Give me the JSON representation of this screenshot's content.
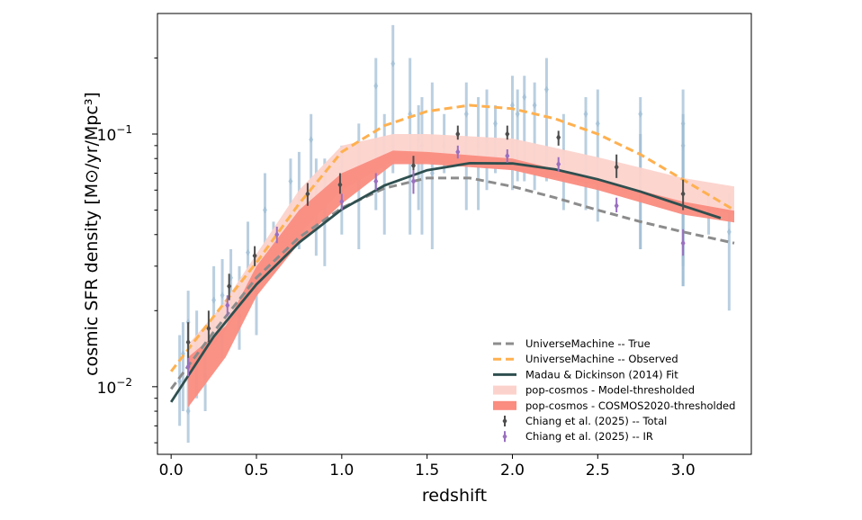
{
  "chart_data": {
    "type": "line",
    "title": "",
    "xlabel": "redshift",
    "ylabel": "cosmic SFR density [M⊙/yr/Mpc³]",
    "xlim": [
      -0.08,
      3.4
    ],
    "ylim": [
      0.0054,
      0.3
    ],
    "yscale": "log",
    "grid": false,
    "legend_position": "lower-right",
    "xticks": [
      0.0,
      0.5,
      1.0,
      1.5,
      2.0,
      2.5,
      3.0
    ],
    "xtick_labels": [
      "0.0",
      "0.5",
      "1.0",
      "1.5",
      "2.0",
      "2.5",
      "3.0"
    ],
    "yticks": [
      0.01,
      0.1
    ],
    "ytick_labels": [
      [
        "10",
        "−2"
      ],
      [
        "10",
        "−1"
      ]
    ],
    "compilation_points": {
      "color": "#9dbcd4",
      "points": [
        [
          0.05,
          0.0105,
          0.007,
          0.016
        ],
        [
          0.07,
          0.0135,
          0.008,
          0.018
        ],
        [
          0.1,
          0.008,
          0.006,
          0.011
        ],
        [
          0.1,
          0.018,
          0.012,
          0.024
        ],
        [
          0.15,
          0.014,
          0.009,
          0.02
        ],
        [
          0.2,
          0.011,
          0.008,
          0.017
        ],
        [
          0.25,
          0.022,
          0.015,
          0.03
        ],
        [
          0.3,
          0.023,
          0.013,
          0.032
        ],
        [
          0.35,
          0.027,
          0.018,
          0.035
        ],
        [
          0.4,
          0.019,
          0.014,
          0.03
        ],
        [
          0.45,
          0.034,
          0.022,
          0.045
        ],
        [
          0.5,
          0.024,
          0.016,
          0.033
        ],
        [
          0.55,
          0.05,
          0.035,
          0.07
        ],
        [
          0.6,
          0.035,
          0.028,
          0.045
        ],
        [
          0.7,
          0.065,
          0.04,
          0.08
        ],
        [
          0.75,
          0.055,
          0.035,
          0.085
        ],
        [
          0.82,
          0.095,
          0.05,
          0.12
        ],
        [
          0.85,
          0.062,
          0.033,
          0.08
        ],
        [
          0.9,
          0.06,
          0.03,
          0.08
        ],
        [
          1.0,
          0.06,
          0.04,
          0.09
        ],
        [
          1.1,
          0.07,
          0.035,
          0.11
        ],
        [
          1.2,
          0.155,
          0.05,
          0.2
        ],
        [
          1.25,
          0.08,
          0.04,
          0.12
        ],
        [
          1.3,
          0.19,
          0.07,
          0.27
        ],
        [
          1.4,
          0.12,
          0.04,
          0.2
        ],
        [
          1.45,
          0.095,
          0.05,
          0.13
        ],
        [
          1.47,
          0.09,
          0.04,
          0.14
        ],
        [
          1.53,
          0.07,
          0.035,
          0.16
        ],
        [
          1.6,
          0.09,
          0.07,
          0.12
        ],
        [
          1.73,
          0.12,
          0.05,
          0.16
        ],
        [
          1.8,
          0.09,
          0.05,
          0.14
        ],
        [
          1.85,
          0.095,
          0.06,
          0.15
        ],
        [
          1.9,
          0.11,
          0.07,
          0.13
        ],
        [
          2.0,
          0.13,
          0.06,
          0.17
        ],
        [
          2.03,
          0.12,
          0.065,
          0.15
        ],
        [
          2.07,
          0.14,
          0.065,
          0.17
        ],
        [
          2.13,
          0.13,
          0.06,
          0.16
        ],
        [
          2.2,
          0.15,
          0.065,
          0.2
        ],
        [
          2.3,
          0.085,
          0.05,
          0.12
        ],
        [
          2.43,
          0.12,
          0.05,
          0.14
        ],
        [
          2.5,
          0.11,
          0.045,
          0.15
        ],
        [
          2.75,
          0.12,
          0.035,
          0.14
        ],
        [
          2.75,
          0.07,
          0.035,
          0.1
        ],
        [
          3.0,
          0.11,
          0.025,
          0.15
        ],
        [
          3.0,
          0.09,
          0.025,
          0.12
        ],
        [
          3.0,
          0.06,
          0.03,
          0.11
        ],
        [
          3.15,
          0.05,
          0.04,
          0.06
        ],
        [
          3.27,
          0.041,
          0.02,
          0.058
        ]
      ]
    },
    "series": [
      {
        "name": "UniverseMachine -- True",
        "kind": "dashed-line",
        "color": "#8c8c8c",
        "x": [
          0,
          0.25,
          0.5,
          0.75,
          1.0,
          1.25,
          1.5,
          1.75,
          2.0,
          2.25,
          2.5,
          2.75,
          3.0,
          3.3
        ],
        "y": [
          0.0098,
          0.0165,
          0.027,
          0.039,
          0.051,
          0.061,
          0.067,
          0.067,
          0.062,
          0.056,
          0.05,
          0.045,
          0.041,
          0.037
        ]
      },
      {
        "name": "UniverseMachine -- Observed",
        "kind": "dashed-line",
        "color": "#ffb04f",
        "x": [
          0,
          0.25,
          0.5,
          0.75,
          1.0,
          1.25,
          1.5,
          1.75,
          2.0,
          2.25,
          2.5,
          2.75,
          3.0,
          3.3
        ],
        "y": [
          0.0115,
          0.019,
          0.031,
          0.053,
          0.085,
          0.108,
          0.123,
          0.13,
          0.126,
          0.115,
          0.1,
          0.083,
          0.066,
          0.05
        ]
      },
      {
        "name": "Madau & Dickinson (2014) Fit",
        "kind": "line",
        "color": "#2f4f4f",
        "x": [
          0,
          0.25,
          0.5,
          0.75,
          1.0,
          1.25,
          1.5,
          1.75,
          2.0,
          2.25,
          2.5,
          2.75,
          3.0,
          3.22
        ],
        "y": [
          0.0087,
          0.0158,
          0.0254,
          0.0372,
          0.0503,
          0.0626,
          0.0719,
          0.0767,
          0.0765,
          0.0725,
          0.0662,
          0.0592,
          0.052,
          0.0465
        ]
      },
      {
        "name": "pop-cosmos - Model-thresholded",
        "kind": "band",
        "color": "#fcd3cc",
        "x": [
          0.1,
          0.3,
          0.5,
          0.75,
          1.0,
          1.3,
          1.5,
          2.0,
          2.5,
          3.0,
          3.3
        ],
        "lower": [
          0.0115,
          0.016,
          0.025,
          0.04,
          0.06,
          0.078,
          0.078,
          0.072,
          0.063,
          0.053,
          0.048
        ],
        "upper": [
          0.0147,
          0.021,
          0.0335,
          0.06,
          0.09,
          0.1,
          0.1,
          0.096,
          0.081,
          0.067,
          0.062
        ]
      },
      {
        "name": "pop-cosmos - COSMOS2020-thresholded",
        "kind": "band",
        "color": "#fa8c80",
        "x": [
          0.1,
          0.32,
          0.5,
          0.75,
          1.0,
          1.3,
          1.5,
          2.0,
          2.5,
          3.0,
          3.3
        ],
        "lower": [
          0.0083,
          0.0131,
          0.0228,
          0.037,
          0.053,
          0.076,
          0.076,
          0.072,
          0.06,
          0.048,
          0.0447
        ],
        "upper": [
          0.0131,
          0.0174,
          0.03,
          0.05,
          0.07,
          0.086,
          0.085,
          0.08,
          0.066,
          0.054,
          0.0497
        ]
      },
      {
        "name": "Chiang et al. (2025) -- Total",
        "kind": "errorbar",
        "color": "#4d4d4d",
        "points": [
          [
            0.1,
            0.015,
            0.012,
            0.018
          ],
          [
            0.22,
            0.017,
            0.015,
            0.02
          ],
          [
            0.34,
            0.025,
            0.022,
            0.028
          ],
          [
            0.49,
            0.033,
            0.03,
            0.036
          ],
          [
            0.8,
            0.058,
            0.052,
            0.064
          ],
          [
            0.99,
            0.063,
            0.058,
            0.07
          ],
          [
            1.42,
            0.075,
            0.068,
            0.082
          ],
          [
            1.68,
            0.1,
            0.095,
            0.108
          ],
          [
            1.97,
            0.1,
            0.095,
            0.108
          ],
          [
            2.27,
            0.097,
            0.09,
            0.103
          ],
          [
            2.61,
            0.074,
            0.067,
            0.083
          ],
          [
            3.0,
            0.058,
            0.05,
            0.066
          ]
        ]
      },
      {
        "name": "Chiang et al. (2025) -- IR",
        "kind": "errorbar",
        "color": "#9a6fc0",
        "points": [
          [
            0.1,
            0.012,
            0.011,
            0.013
          ],
          [
            0.33,
            0.021,
            0.019,
            0.023
          ],
          [
            0.62,
            0.04,
            0.037,
            0.043
          ],
          [
            1.0,
            0.054,
            0.05,
            0.058
          ],
          [
            1.2,
            0.065,
            0.06,
            0.07
          ],
          [
            1.42,
            0.065,
            0.058,
            0.072
          ],
          [
            1.68,
            0.085,
            0.08,
            0.09
          ],
          [
            1.97,
            0.082,
            0.077,
            0.087
          ],
          [
            2.27,
            0.076,
            0.071,
            0.081
          ],
          [
            2.61,
            0.052,
            0.049,
            0.056
          ],
          [
            3.0,
            0.037,
            0.033,
            0.042
          ]
        ]
      }
    ]
  }
}
